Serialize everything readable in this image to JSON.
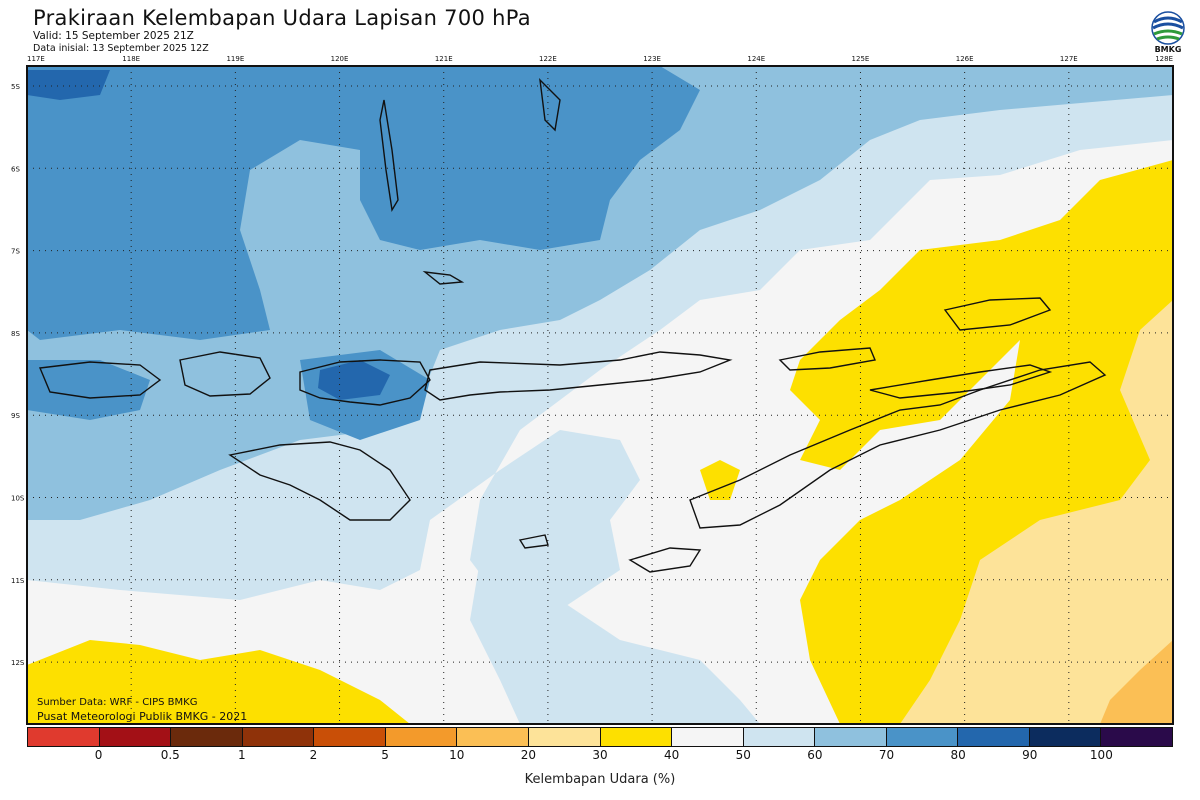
{
  "header": {
    "title": "Prakiraan Kelembapan Udara Lapisan 700 hPa",
    "valid": "Valid: 15 September 2025 21Z",
    "initial": "Data inisial: 13 September 2025 12Z"
  },
  "logo": {
    "text": "BMKG"
  },
  "map": {
    "lon_labels": [
      "117E",
      "118E",
      "119E",
      "120E",
      "121E",
      "122E",
      "123E",
      "124E",
      "125E",
      "126E",
      "127E",
      "128E"
    ],
    "lat_labels": [
      "5S",
      "6S",
      "7S",
      "8S",
      "9S",
      "10S",
      "11S",
      "12S"
    ]
  },
  "source": {
    "line1": "Sumber Data: WRF - CIPS BMKG",
    "line2": "Pusat Meteorologi Publik BMKG - 2021"
  },
  "colorbar": {
    "label": "Kelembapan Udara (%)",
    "ticks": [
      "0",
      "0.5",
      "1",
      "2",
      "5",
      "10",
      "20",
      "30",
      "40",
      "50",
      "60",
      "70",
      "80",
      "90",
      "100"
    ],
    "colors": [
      "#e03a2e",
      "#a31016",
      "#6b2a0c",
      "#8f3209",
      "#c94f07",
      "#f39a2b",
      "#fbbf55",
      "#fde399",
      "#fde000",
      "#f5f5f5",
      "#cfe4f0",
      "#8fc1de",
      "#4a93c8",
      "#2367ad",
      "#0c2c5e",
      "#2a0a4a"
    ]
  }
}
